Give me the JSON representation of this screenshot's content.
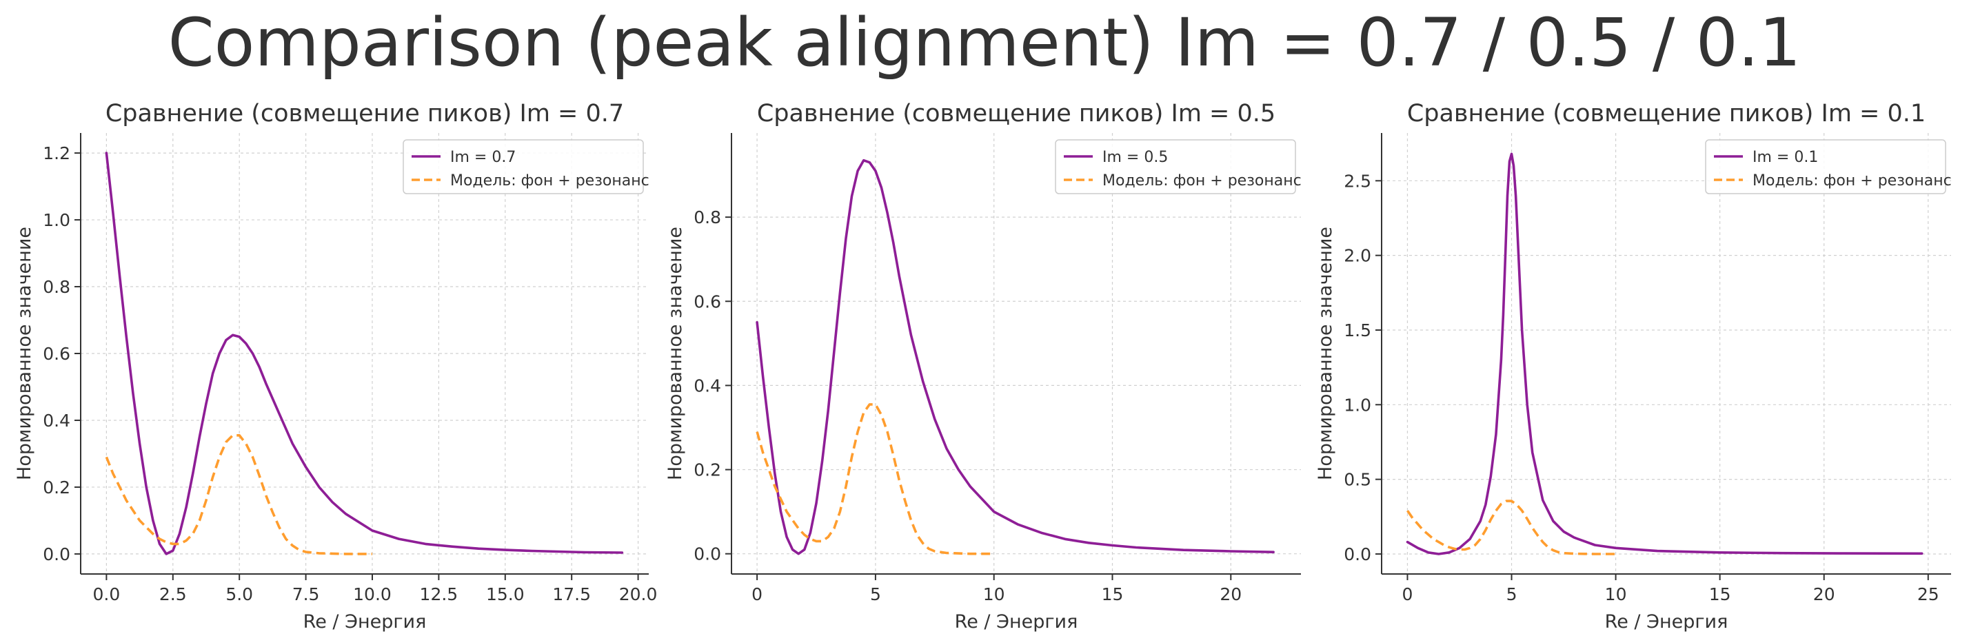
{
  "suptitle": "Comparison (peak alignment) Im = 0.7 / 0.5 / 0.1",
  "colors": {
    "series_main": "#8e1e96",
    "series_model": "#ff9d2e",
    "grid": "#d0d0d0",
    "axis": "#333333",
    "text": "#333333"
  },
  "chart_data": [
    {
      "type": "line",
      "title": "Сравнение (совмещение пиков) Im = 0.7",
      "xlabel": "Re / Энергия",
      "ylabel": "Нормированное значение",
      "xlim": [
        -0.97,
        20.4
      ],
      "ylim": [
        -0.06,
        1.26
      ],
      "xticks": [
        0.0,
        2.5,
        5.0,
        7.5,
        10.0,
        12.5,
        15.0,
        17.5,
        20.0
      ],
      "xtick_labels": [
        "0.0",
        "2.5",
        "5.0",
        "7.5",
        "10.0",
        "12.5",
        "15.0",
        "17.5",
        "20.0"
      ],
      "yticks": [
        0.0,
        0.2,
        0.4,
        0.6,
        0.8,
        1.0,
        1.2
      ],
      "ytick_labels": [
        "0.0",
        "0.2",
        "0.4",
        "0.6",
        "0.8",
        "1.0",
        "1.2"
      ],
      "grid": true,
      "legend_position": "top-right",
      "series": [
        {
          "name": "Im = 0.7",
          "style": "solid",
          "x": [
            0.0,
            0.25,
            0.5,
            0.75,
            1.0,
            1.25,
            1.5,
            1.75,
            2.0,
            2.25,
            2.5,
            2.75,
            3.0,
            3.25,
            3.5,
            3.75,
            4.0,
            4.25,
            4.5,
            4.75,
            5.0,
            5.25,
            5.5,
            5.75,
            6.0,
            6.5,
            7.0,
            7.5,
            8.0,
            8.5,
            9.0,
            10.0,
            11.0,
            12.0,
            13.0,
            14.0,
            15.0,
            16.0,
            17.0,
            18.0,
            19.4
          ],
          "y": [
            1.2,
            1.02,
            0.83,
            0.65,
            0.48,
            0.33,
            0.2,
            0.1,
            0.03,
            0.0,
            0.01,
            0.06,
            0.14,
            0.24,
            0.35,
            0.45,
            0.54,
            0.6,
            0.64,
            0.655,
            0.65,
            0.63,
            0.6,
            0.56,
            0.51,
            0.42,
            0.33,
            0.26,
            0.2,
            0.155,
            0.12,
            0.07,
            0.045,
            0.03,
            0.022,
            0.016,
            0.012,
            0.009,
            0.007,
            0.005,
            0.004
          ]
        },
        {
          "name": "Модель: фон + резонанс",
          "style": "dashed",
          "x": [
            0.0,
            0.25,
            0.5,
            0.75,
            1.0,
            1.25,
            1.5,
            1.75,
            2.0,
            2.25,
            2.5,
            2.75,
            3.0,
            3.25,
            3.5,
            3.75,
            4.0,
            4.25,
            4.5,
            4.75,
            5.0,
            5.25,
            5.5,
            5.75,
            6.0,
            6.25,
            6.5,
            6.75,
            7.0,
            7.25,
            7.5,
            8.0,
            8.5,
            9.0,
            9.5,
            10.0
          ],
          "y": [
            0.29,
            0.24,
            0.2,
            0.16,
            0.13,
            0.1,
            0.08,
            0.06,
            0.045,
            0.035,
            0.03,
            0.03,
            0.04,
            0.06,
            0.1,
            0.16,
            0.23,
            0.29,
            0.335,
            0.355,
            0.355,
            0.33,
            0.29,
            0.235,
            0.175,
            0.125,
            0.08,
            0.045,
            0.025,
            0.012,
            0.006,
            0.002,
            0.001,
            0.0,
            0.0,
            0.0
          ]
        }
      ]
    },
    {
      "type": "line",
      "title": "Сравнение (совмещение пиков) Im = 0.5",
      "xlabel": "Re / Энергия",
      "ylabel": "Нормированное значение",
      "xlim": [
        -1.08,
        22.96
      ],
      "ylim": [
        -0.048,
        1.0
      ],
      "xticks": [
        0,
        5,
        10,
        15,
        20
      ],
      "xtick_labels": [
        "0",
        "5",
        "10",
        "15",
        "20"
      ],
      "yticks": [
        0.0,
        0.2,
        0.4,
        0.6,
        0.8
      ],
      "ytick_labels": [
        "0.0",
        "0.2",
        "0.4",
        "0.6",
        "0.8"
      ],
      "grid": true,
      "legend_position": "top-right",
      "series": [
        {
          "name": "Im = 0.5",
          "style": "solid",
          "x": [
            0.0,
            0.25,
            0.5,
            0.75,
            1.0,
            1.25,
            1.5,
            1.75,
            2.0,
            2.25,
            2.5,
            2.75,
            3.0,
            3.25,
            3.5,
            3.75,
            4.0,
            4.25,
            4.5,
            4.75,
            5.0,
            5.25,
            5.5,
            5.75,
            6.0,
            6.5,
            7.0,
            7.5,
            8.0,
            8.5,
            9.0,
            10.0,
            11.0,
            12.0,
            13.0,
            14.0,
            15.0,
            16.0,
            18.0,
            20.0,
            21.8
          ],
          "y": [
            0.55,
            0.42,
            0.3,
            0.19,
            0.1,
            0.04,
            0.01,
            0.0,
            0.01,
            0.05,
            0.12,
            0.22,
            0.34,
            0.48,
            0.62,
            0.75,
            0.85,
            0.91,
            0.935,
            0.93,
            0.91,
            0.87,
            0.81,
            0.74,
            0.66,
            0.52,
            0.41,
            0.32,
            0.25,
            0.2,
            0.16,
            0.1,
            0.07,
            0.05,
            0.035,
            0.026,
            0.02,
            0.015,
            0.009,
            0.006,
            0.004
          ]
        },
        {
          "name": "Модель: фон + резонанс",
          "style": "dashed",
          "x": [
            0.0,
            0.25,
            0.5,
            0.75,
            1.0,
            1.25,
            1.5,
            1.75,
            2.0,
            2.25,
            2.5,
            2.75,
            3.0,
            3.25,
            3.5,
            3.75,
            4.0,
            4.25,
            4.5,
            4.75,
            5.0,
            5.25,
            5.5,
            5.75,
            6.0,
            6.25,
            6.5,
            6.75,
            7.0,
            7.25,
            7.5,
            8.0,
            8.5,
            9.0,
            9.5,
            10.0
          ],
          "y": [
            0.29,
            0.24,
            0.2,
            0.16,
            0.13,
            0.1,
            0.08,
            0.06,
            0.045,
            0.035,
            0.03,
            0.03,
            0.04,
            0.06,
            0.1,
            0.16,
            0.23,
            0.29,
            0.335,
            0.355,
            0.355,
            0.33,
            0.29,
            0.235,
            0.175,
            0.125,
            0.08,
            0.045,
            0.025,
            0.012,
            0.006,
            0.002,
            0.001,
            0.0,
            0.0,
            0.0
          ]
        }
      ]
    },
    {
      "type": "line",
      "title": "Сравнение (совмещение пиков) Im = 0.1",
      "xlabel": "Re / Энергия",
      "ylabel": "Нормированное значение",
      "xlim": [
        -1.24,
        26.1
      ],
      "ylim": [
        -0.134,
        2.82
      ],
      "xticks": [
        0,
        5,
        10,
        15,
        20,
        25
      ],
      "xtick_labels": [
        "0",
        "5",
        "10",
        "15",
        "20",
        "25"
      ],
      "yticks": [
        0.0,
        0.5,
        1.0,
        1.5,
        2.0,
        2.5
      ],
      "ytick_labels": [
        "0.0",
        "0.5",
        "1.0",
        "1.5",
        "2.0",
        "2.5"
      ],
      "grid": true,
      "legend_position": "top-right",
      "series": [
        {
          "name": "Im = 0.1",
          "style": "solid",
          "x": [
            0.0,
            0.5,
            1.0,
            1.5,
            2.0,
            2.5,
            3.0,
            3.5,
            3.75,
            4.0,
            4.25,
            4.5,
            4.6,
            4.7,
            4.8,
            4.9,
            5.0,
            5.1,
            5.2,
            5.3,
            5.4,
            5.5,
            5.75,
            6.0,
            6.5,
            7.0,
            7.5,
            8.0,
            9.0,
            10.0,
            12.0,
            15.0,
            18.0,
            21.0,
            24.7
          ],
          "y": [
            0.08,
            0.04,
            0.01,
            0.0,
            0.01,
            0.04,
            0.1,
            0.22,
            0.33,
            0.52,
            0.8,
            1.3,
            1.6,
            2.0,
            2.4,
            2.63,
            2.68,
            2.6,
            2.4,
            2.1,
            1.8,
            1.5,
            1.0,
            0.68,
            0.36,
            0.22,
            0.15,
            0.11,
            0.06,
            0.04,
            0.02,
            0.01,
            0.006,
            0.004,
            0.003
          ]
        },
        {
          "name": "Модель: фон + резонанс",
          "style": "dashed",
          "x": [
            0.0,
            0.25,
            0.5,
            0.75,
            1.0,
            1.25,
            1.5,
            1.75,
            2.0,
            2.25,
            2.5,
            2.75,
            3.0,
            3.25,
            3.5,
            3.75,
            4.0,
            4.25,
            4.5,
            4.75,
            5.0,
            5.25,
            5.5,
            5.75,
            6.0,
            6.25,
            6.5,
            6.75,
            7.0,
            7.25,
            7.5,
            8.0,
            8.5,
            9.0,
            9.5,
            10.0
          ],
          "y": [
            0.29,
            0.24,
            0.2,
            0.16,
            0.13,
            0.1,
            0.08,
            0.06,
            0.045,
            0.035,
            0.03,
            0.03,
            0.04,
            0.06,
            0.1,
            0.16,
            0.23,
            0.29,
            0.335,
            0.355,
            0.355,
            0.33,
            0.29,
            0.235,
            0.175,
            0.125,
            0.08,
            0.045,
            0.025,
            0.012,
            0.006,
            0.002,
            0.001,
            0.0,
            0.0,
            0.0
          ]
        }
      ]
    }
  ]
}
